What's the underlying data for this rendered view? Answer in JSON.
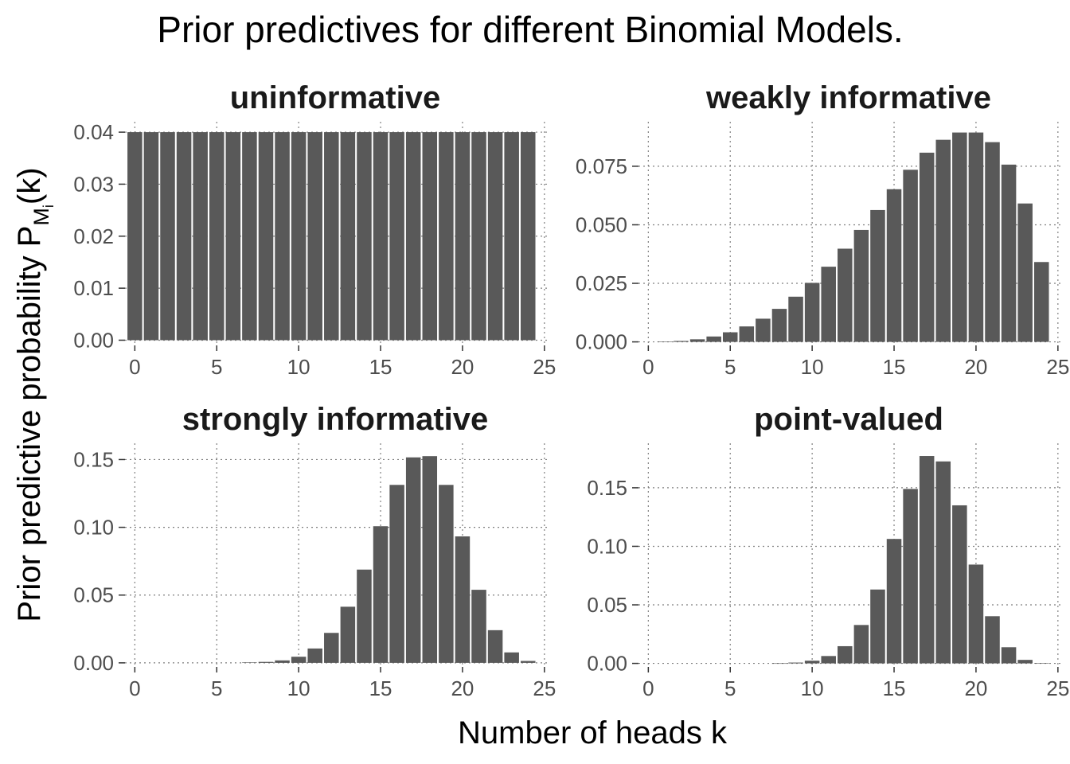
{
  "title": "Prior predictives for different Binomial Models.",
  "xlabel": "Number of heads k",
  "ylabel": {
    "main": "Prior predictive probability P",
    "sub": "M",
    "subsub": "i",
    "arg": "(k)"
  },
  "chart_data": [
    {
      "type": "bar",
      "title": "uninformative",
      "x": [
        0,
        1,
        2,
        3,
        4,
        5,
        6,
        7,
        8,
        9,
        10,
        11,
        12,
        13,
        14,
        15,
        16,
        17,
        18,
        19,
        20,
        21,
        22,
        23,
        24
      ],
      "values": [
        0.04,
        0.04,
        0.04,
        0.04,
        0.04,
        0.04,
        0.04,
        0.04,
        0.04,
        0.04,
        0.04,
        0.04,
        0.04,
        0.04,
        0.04,
        0.04,
        0.04,
        0.04,
        0.04,
        0.04,
        0.04,
        0.04,
        0.04,
        0.04,
        0.04
      ],
      "xlim": [
        -0.6,
        25.3
      ],
      "ylim": [
        -0.001,
        0.042
      ],
      "xticks": [
        0,
        5,
        10,
        15,
        20,
        25
      ],
      "yticks": [
        0,
        0.01,
        0.02,
        0.03,
        0.04
      ],
      "yticklabels": [
        "0.00",
        "0.01",
        "0.02",
        "0.03",
        "0.04"
      ],
      "grid": true
    },
    {
      "type": "bar",
      "title": "weakly informative",
      "x": [
        0,
        1,
        2,
        3,
        4,
        5,
        6,
        7,
        8,
        9,
        10,
        11,
        12,
        13,
        14,
        15,
        16,
        17,
        18,
        19,
        20,
        21,
        22,
        23,
        24
      ],
      "values": [
        0,
        0.0001,
        0.0004,
        0.0011,
        0.0023,
        0.0041,
        0.0066,
        0.0099,
        0.0141,
        0.0193,
        0.0252,
        0.0321,
        0.0398,
        0.0478,
        0.0563,
        0.0652,
        0.0735,
        0.0808,
        0.0863,
        0.0894,
        0.0894,
        0.0853,
        0.0757,
        0.0591,
        0.0341
      ],
      "xlim": [
        -0.6,
        25.3
      ],
      "ylim": [
        -0.0015,
        0.094
      ],
      "xticks": [
        0,
        5,
        10,
        15,
        20,
        25
      ],
      "yticks": [
        0,
        0.025,
        0.05,
        0.075
      ],
      "yticklabels": [
        "0.000",
        "0.025",
        "0.050",
        "0.075"
      ],
      "grid": true
    },
    {
      "type": "bar",
      "title": "strongly informative",
      "x": [
        0,
        1,
        2,
        3,
        4,
        5,
        6,
        7,
        8,
        9,
        10,
        11,
        12,
        13,
        14,
        15,
        16,
        17,
        18,
        19,
        20,
        21,
        22,
        23,
        24
      ],
      "values": [
        0,
        0,
        0,
        0,
        0,
        0,
        0,
        0.0003,
        0.0007,
        0.0018,
        0.0045,
        0.0106,
        0.0221,
        0.0414,
        0.0688,
        0.1008,
        0.1313,
        0.1516,
        0.1525,
        0.1313,
        0.0933,
        0.0539,
        0.0241,
        0.0077,
        0.0014
      ],
      "xlim": [
        -0.6,
        25.3
      ],
      "ylim": [
        -0.003,
        0.162
      ],
      "xticks": [
        0,
        5,
        10,
        15,
        20,
        25
      ],
      "yticks": [
        0,
        0.05,
        0.1,
        0.15
      ],
      "yticklabels": [
        "0.00",
        "0.05",
        "0.10",
        "0.15"
      ],
      "grid": true
    },
    {
      "type": "bar",
      "title": "point-valued",
      "x": [
        0,
        1,
        2,
        3,
        4,
        5,
        6,
        7,
        8,
        9,
        10,
        11,
        12,
        13,
        14,
        15,
        16,
        17,
        18,
        19,
        20,
        21,
        22,
        23,
        24
      ],
      "values": [
        0,
        0,
        0,
        0,
        0,
        0,
        0,
        0,
        0.0001,
        0.0007,
        0.0023,
        0.0063,
        0.0147,
        0.0328,
        0.0631,
        0.1063,
        0.149,
        0.1771,
        0.1725,
        0.135,
        0.0844,
        0.0403,
        0.0138,
        0.003,
        0.0004
      ],
      "xlim": [
        -0.6,
        25.3
      ],
      "ylim": [
        -0.003,
        0.188
      ],
      "xticks": [
        0,
        5,
        10,
        15,
        20,
        25
      ],
      "yticks": [
        0,
        0.05,
        0.1,
        0.15
      ],
      "yticklabels": [
        "0.00",
        "0.05",
        "0.10",
        "0.15"
      ],
      "grid": true
    }
  ]
}
